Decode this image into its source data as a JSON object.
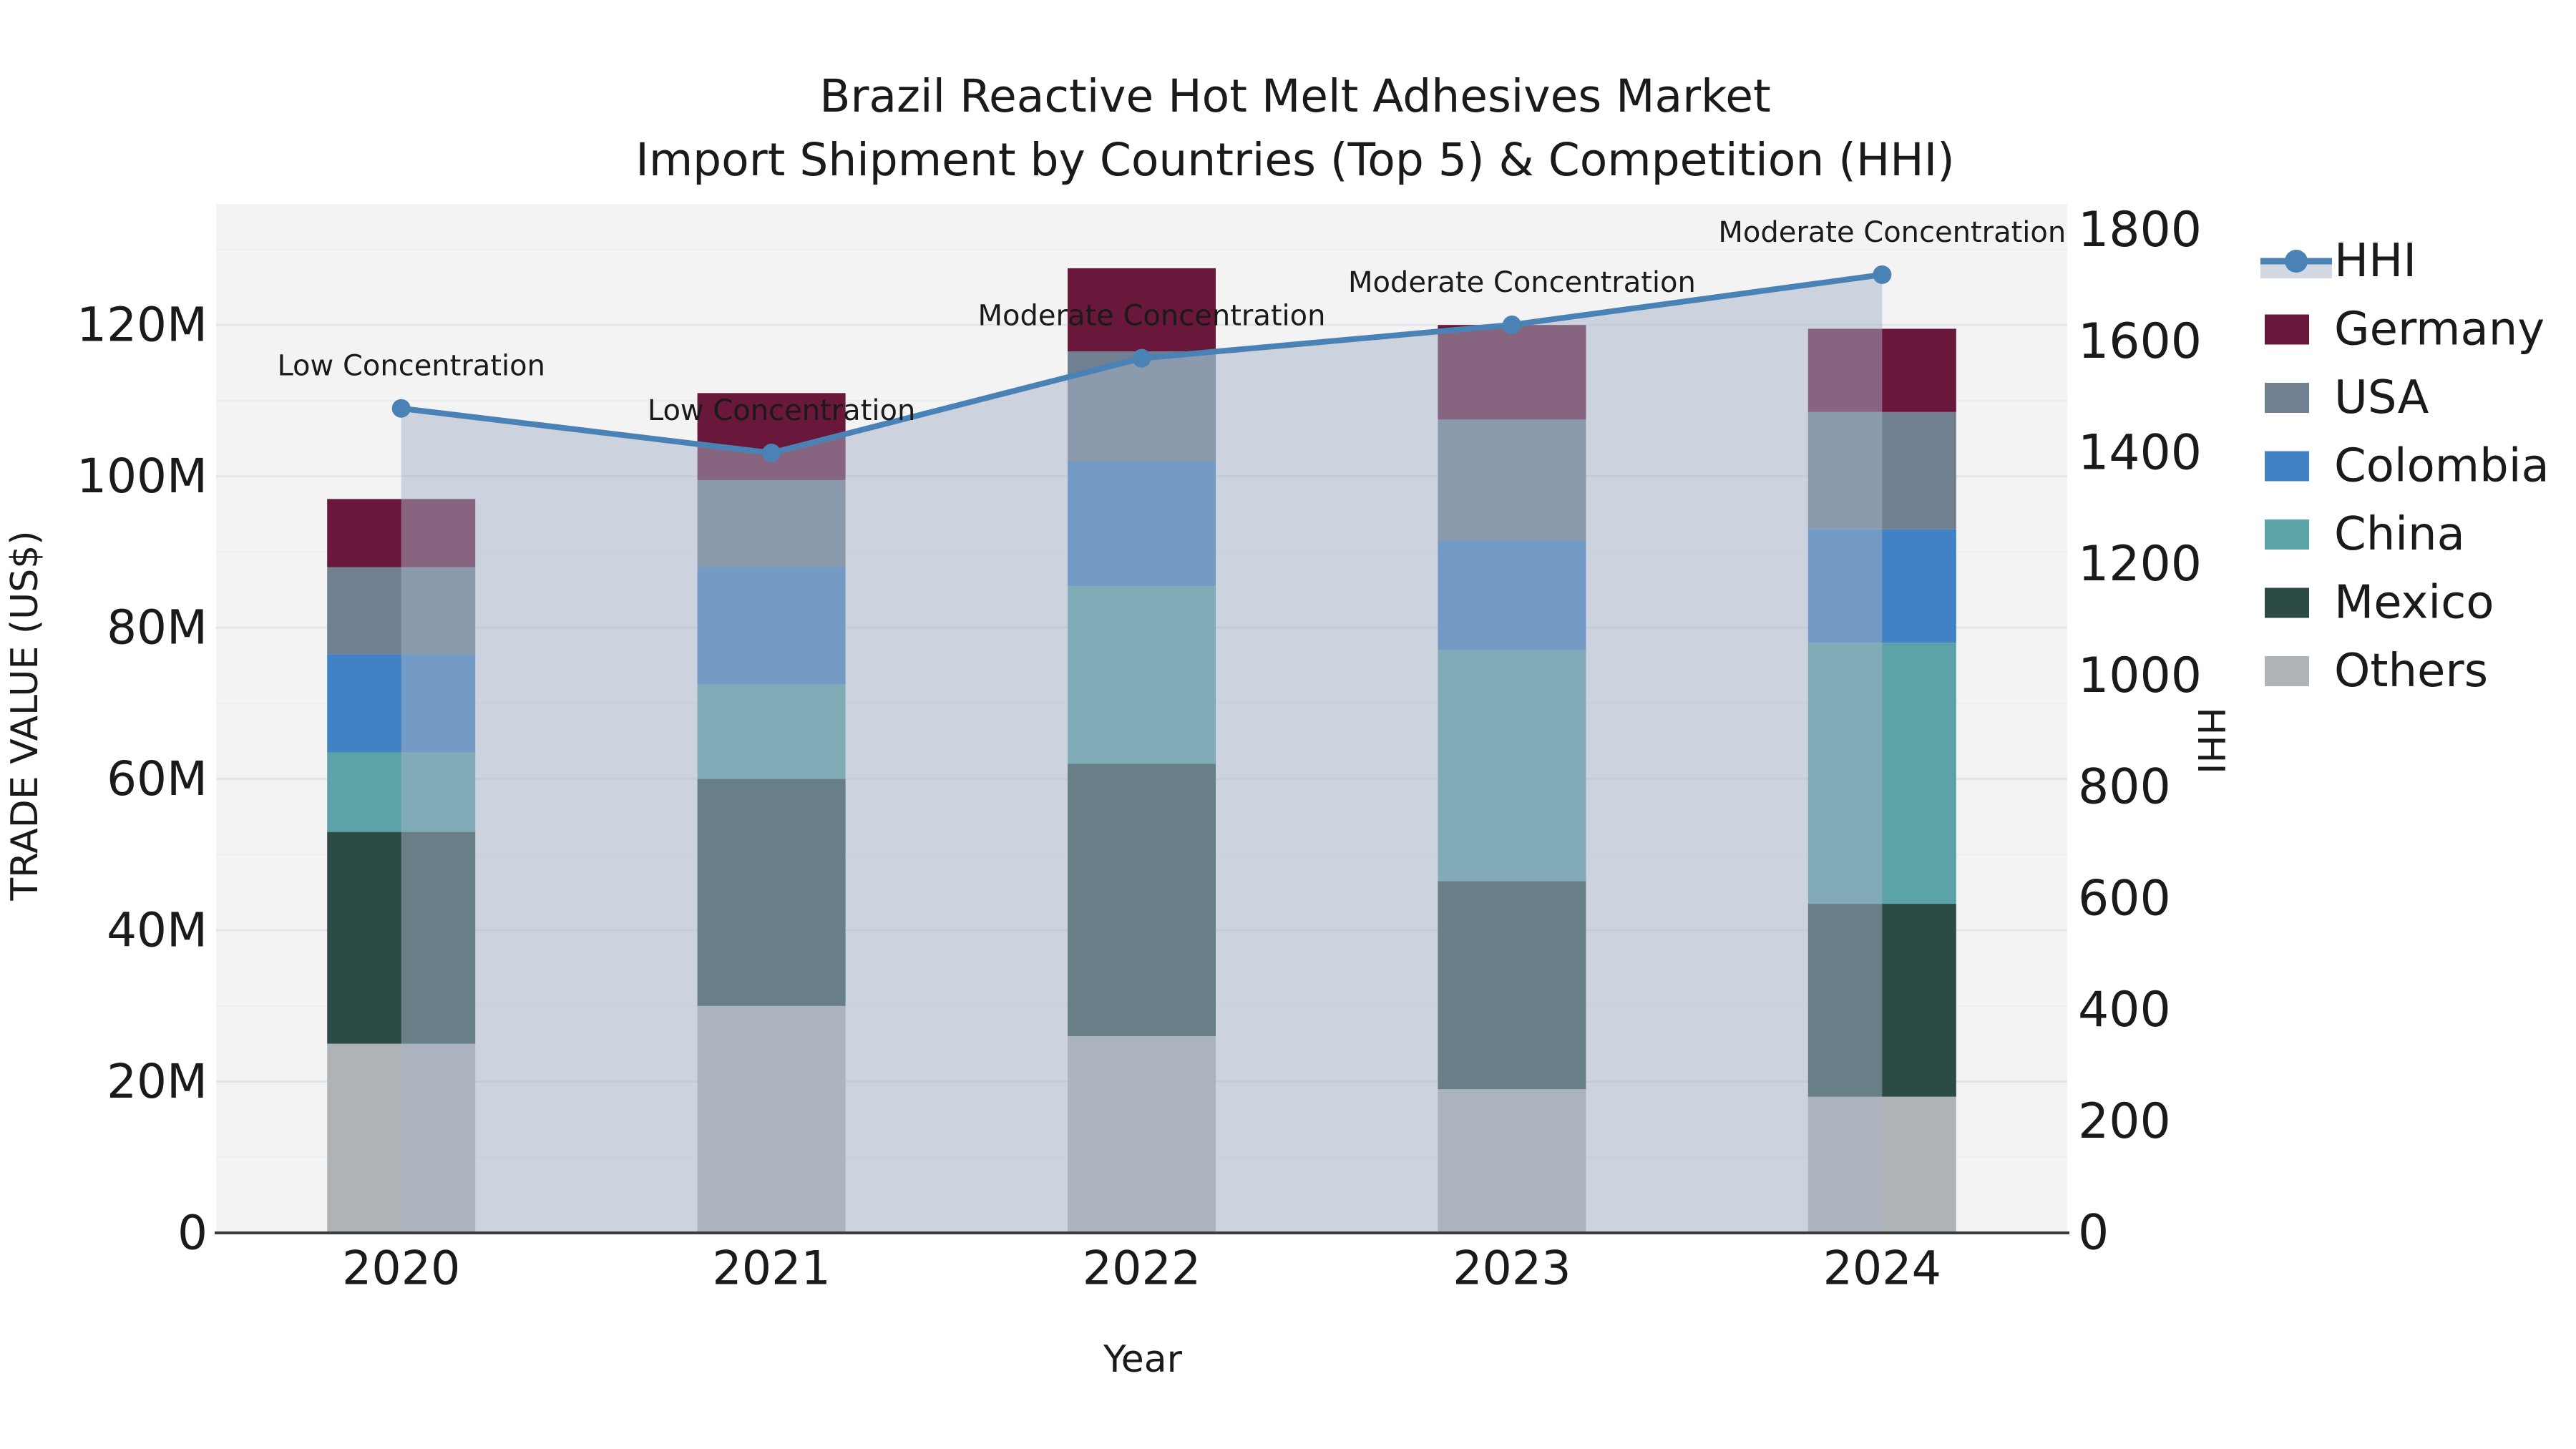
{
  "colors": {
    "Germany": "#69173a",
    "USA": "#708090",
    "Colombia": "#4182c4",
    "China": "#5ba3a6",
    "Mexico": "#2c4b47",
    "Others": "#afb3b5",
    "HHI": "#4a82b6",
    "hhi_area_fill": "rgba(165,180,200,0.5)",
    "plot_bg": "#f3f3f4",
    "grid_major": "#e3e5e8",
    "grid_minor": "#ebedef",
    "spine": "#3c3c3c",
    "text": "#1a1a1a"
  },
  "chart_data": {
    "type": "stacked-bar+line",
    "title1": "Brazil Reactive Hot Melt Adhesives Market",
    "title2": "Import Shipment by Countries (Top 5) & Competition (HHI)",
    "xlabel": "Year",
    "ylabel": "TRADE VALUE (US$)",
    "y2label": "HHI",
    "unit": "million US$",
    "categories": [
      "2020",
      "2021",
      "2022",
      "2023",
      "2024"
    ],
    "series": [
      {
        "name": "Others",
        "values": [
          25,
          30,
          26,
          19,
          18
        ]
      },
      {
        "name": "Mexico",
        "values": [
          28,
          30,
          36,
          27.5,
          25.5
        ]
      },
      {
        "name": "China",
        "values": [
          10.5,
          12.5,
          23.5,
          30.5,
          34.5
        ]
      },
      {
        "name": "Colombia",
        "values": [
          13,
          15.5,
          16.5,
          14.5,
          15
        ]
      },
      {
        "name": "USA",
        "values": [
          11.5,
          11.5,
          14.5,
          16,
          15.5
        ]
      },
      {
        "name": "Germany",
        "values": [
          9,
          11.5,
          11,
          12.5,
          11
        ]
      }
    ],
    "totals": [
      97,
      111,
      127.5,
      120,
      119.5
    ],
    "line": {
      "name": "HHI",
      "axis": "right",
      "values": [
        1480,
        1400,
        1570,
        1630,
        1720
      ]
    },
    "annotations": [
      "Low Concentration",
      "Low Concentration",
      "Moderate Concentration",
      "Moderate Concentration",
      "Moderate Concentration"
    ],
    "y_ticks": [
      "0",
      "20M",
      "40M",
      "60M",
      "80M",
      "100M",
      "120M"
    ],
    "y_tick_values": [
      0,
      20,
      40,
      60,
      80,
      100,
      120
    ],
    "y2_ticks": [
      "0",
      "200",
      "400",
      "600",
      "800",
      "1000",
      "1200",
      "1400",
      "1600",
      "1800"
    ],
    "y2_tick_values": [
      0,
      200,
      400,
      600,
      800,
      1000,
      1200,
      1400,
      1600,
      1800
    ],
    "ylim": [
      0,
      136
    ],
    "y2lim": [
      0,
      1847
    ],
    "grid": "on",
    "legend_position": "upper right outside",
    "legend_order": [
      "HHI",
      "Germany",
      "USA",
      "Colombia",
      "China",
      "Mexico",
      "Others"
    ]
  }
}
